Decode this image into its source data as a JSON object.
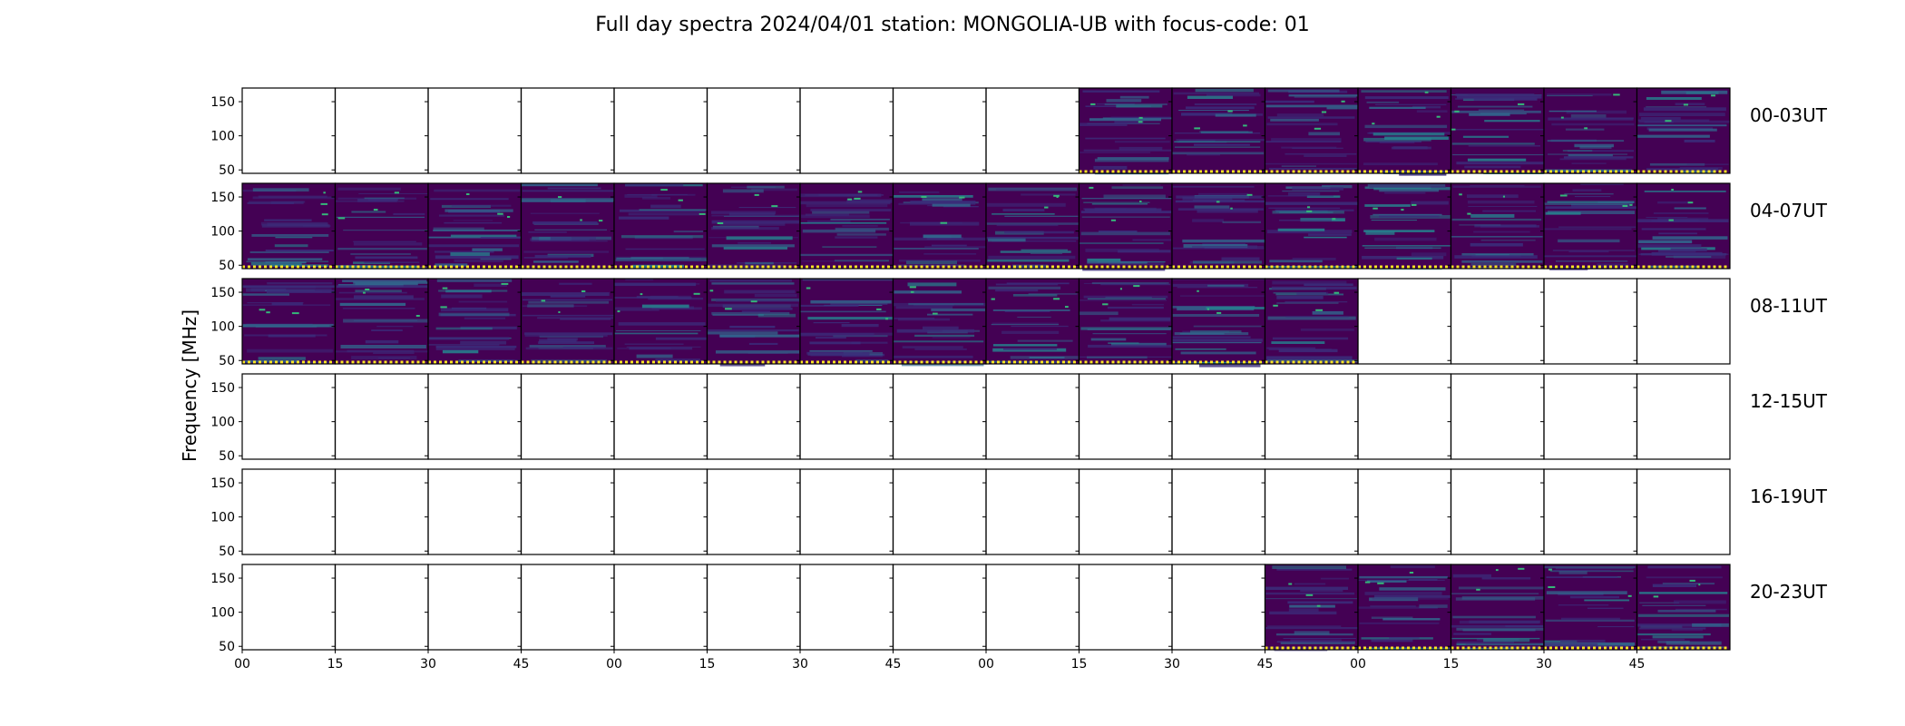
{
  "title": "Full day spectra 2024/04/01 station: MONGOLIA-UB with focus-code: 01",
  "colors": {
    "bg_dark": "#440154",
    "bg_mid": "#3b2c7a",
    "band_a": "#31688e",
    "band_b": "#26828e",
    "bright": "#35b779",
    "highlight": "#fde725",
    "frame": "#000000"
  },
  "chart_data": {
    "type": "heatmap",
    "title": "Full day spectra 2024/04/01 station: MONGOLIA-UB with focus-code: 01",
    "ylabel": "Frequency [MHz]",
    "xlabel": "",
    "ylim": [
      45,
      170
    ],
    "y_ticks": [
      "150",
      "100",
      "50"
    ],
    "x_tick_labels": [
      "00",
      "15",
      "30",
      "45",
      "00",
      "15",
      "30",
      "45",
      "00",
      "15",
      "30",
      "45",
      "00",
      "15",
      "30",
      "45"
    ],
    "panels_per_row": 16,
    "panel_minutes": 15,
    "colormap": "viridis",
    "rows": [
      {
        "label": "00-03UT",
        "data_panels": [
          9,
          10,
          11,
          12,
          13,
          14,
          15
        ]
      },
      {
        "label": "04-07UT",
        "data_panels": [
          0,
          1,
          2,
          3,
          4,
          5,
          6,
          7,
          8,
          9,
          10,
          11,
          12,
          13,
          14,
          15
        ]
      },
      {
        "label": "08-11UT",
        "data_panels": [
          0,
          1,
          2,
          3,
          4,
          5,
          6,
          7,
          8,
          9,
          10,
          11
        ]
      },
      {
        "label": "12-15UT",
        "data_panels": []
      },
      {
        "label": "16-19UT",
        "data_panels": []
      },
      {
        "label": "20-23UT",
        "data_panels": [
          11,
          12,
          13,
          14,
          15
        ]
      }
    ]
  }
}
